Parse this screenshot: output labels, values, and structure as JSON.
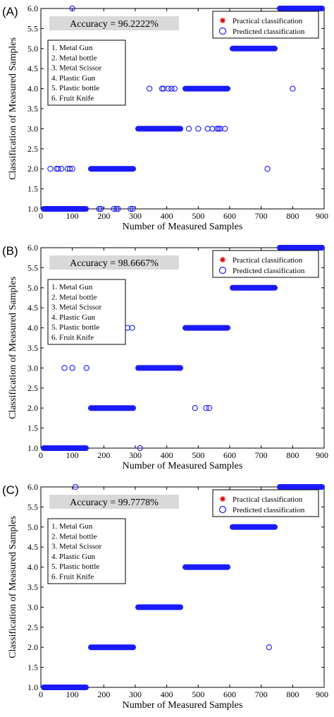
{
  "chart_data": [
    {
      "type": "scatter",
      "panel_label": "(A)",
      "xlabel": "Number of Measured Samples",
      "ylabel": "Classification of Measured Samples",
      "xlim": [
        0,
        900
      ],
      "ylim": [
        1.0,
        6.0
      ],
      "xticks": [
        "0",
        "100",
        "200",
        "300",
        "400",
        "500",
        "600",
        "700",
        "800",
        "900"
      ],
      "yticks": [
        "1.0",
        "1.5",
        "2.0",
        "2.5",
        "3.0",
        "3.5",
        "4.0",
        "4.5",
        "5.0",
        "5.5",
        "6.0"
      ],
      "accuracy_text": "Accuracy = 96.2222%",
      "classes": [
        "1. Metal Gun",
        "2. Metal bottle",
        "3. Metal Scissor",
        "4. Plastic Gun",
        "5. Plastic bottle",
        "6. Fruit Knife"
      ],
      "legend": [
        "Practical classification",
        "Predicted classification"
      ],
      "practical": [
        {
          "class": 1,
          "x_start": 0,
          "x_end": 150
        },
        {
          "class": 2,
          "x_start": 150,
          "x_end": 300
        },
        {
          "class": 3,
          "x_start": 300,
          "x_end": 450
        },
        {
          "class": 4,
          "x_start": 450,
          "x_end": 600
        },
        {
          "class": 5,
          "x_start": 600,
          "x_end": 750
        },
        {
          "class": 6,
          "x_start": 750,
          "x_end": 900
        }
      ],
      "misclassified": [
        {
          "x": 100,
          "y": 6.0
        },
        {
          "x": 30,
          "y": 2.0
        },
        {
          "x": 50,
          "y": 2.0
        },
        {
          "x": 55,
          "y": 2.0
        },
        {
          "x": 65,
          "y": 2.0
        },
        {
          "x": 85,
          "y": 2.0
        },
        {
          "x": 92,
          "y": 2.0
        },
        {
          "x": 100,
          "y": 2.0
        },
        {
          "x": 185,
          "y": 1.0
        },
        {
          "x": 190,
          "y": 1.0
        },
        {
          "x": 232,
          "y": 1.0
        },
        {
          "x": 240,
          "y": 1.0
        },
        {
          "x": 245,
          "y": 1.0
        },
        {
          "x": 285,
          "y": 1.0
        },
        {
          "x": 292,
          "y": 1.0
        },
        {
          "x": 345,
          "y": 4.0
        },
        {
          "x": 385,
          "y": 4.0
        },
        {
          "x": 390,
          "y": 4.0
        },
        {
          "x": 405,
          "y": 4.0
        },
        {
          "x": 415,
          "y": 4.0
        },
        {
          "x": 425,
          "y": 4.0
        },
        {
          "x": 470,
          "y": 3.0
        },
        {
          "x": 500,
          "y": 3.0
        },
        {
          "x": 530,
          "y": 3.0
        },
        {
          "x": 545,
          "y": 3.0
        },
        {
          "x": 560,
          "y": 3.0
        },
        {
          "x": 565,
          "y": 3.0
        },
        {
          "x": 570,
          "y": 3.0
        },
        {
          "x": 585,
          "y": 3.0
        },
        {
          "x": 720,
          "y": 2.0
        },
        {
          "x": 800,
          "y": 4.0
        }
      ]
    },
    {
      "type": "scatter",
      "panel_label": "(B)",
      "xlabel": "Number of Measured Samples",
      "ylabel": "Classification of Measured Samples",
      "xlim": [
        0,
        900
      ],
      "ylim": [
        1.0,
        6.0
      ],
      "xticks": [
        "0",
        "100",
        "200",
        "300",
        "400",
        "500",
        "600",
        "700",
        "800",
        "900"
      ],
      "yticks": [
        "1.0",
        "1.5",
        "2.0",
        "2.5",
        "3.0",
        "3.5",
        "4.0",
        "4.5",
        "5.0",
        "5.5",
        "6.0"
      ],
      "accuracy_text": "Accuracy = 98.6667%",
      "classes": [
        "1. Metal Gun",
        "2. Metal bottle",
        "3. Metal Scissor",
        "4. Plastic Gun",
        "5. Plastic bottle",
        "6. Fruit Knife"
      ],
      "legend": [
        "Practical classification",
        "Predicted classification"
      ],
      "practical": [
        {
          "class": 1,
          "x_start": 0,
          "x_end": 150
        },
        {
          "class": 2,
          "x_start": 150,
          "x_end": 300
        },
        {
          "class": 3,
          "x_start": 300,
          "x_end": 450
        },
        {
          "class": 4,
          "x_start": 450,
          "x_end": 600
        },
        {
          "class": 5,
          "x_start": 600,
          "x_end": 750
        },
        {
          "class": 6,
          "x_start": 750,
          "x_end": 900
        }
      ],
      "misclassified": [
        {
          "x": 75,
          "y": 3.0
        },
        {
          "x": 100,
          "y": 3.0
        },
        {
          "x": 145,
          "y": 3.0
        },
        {
          "x": 250,
          "y": 4.0
        },
        {
          "x": 275,
          "y": 4.0
        },
        {
          "x": 290,
          "y": 4.0
        },
        {
          "x": 315,
          "y": 1.0
        },
        {
          "x": 490,
          "y": 2.0
        },
        {
          "x": 525,
          "y": 2.0
        },
        {
          "x": 535,
          "y": 2.0
        }
      ]
    },
    {
      "type": "scatter",
      "panel_label": "(C)",
      "xlabel": "Number of Measured Samples",
      "ylabel": "Classification of Measured Samples",
      "xlim": [
        0,
        900
      ],
      "ylim": [
        1.0,
        6.0
      ],
      "xticks": [
        "0",
        "100",
        "200",
        "300",
        "400",
        "500",
        "600",
        "700",
        "800",
        "900"
      ],
      "yticks": [
        "1.0",
        "1.5",
        "2.0",
        "2.5",
        "3.0",
        "3.5",
        "4.0",
        "4.5",
        "5.0",
        "5.5",
        "6.0"
      ],
      "accuracy_text": "Accuracy = 99.7778%",
      "classes": [
        "1. Metal Gun",
        "2. Metal bottle",
        "3. Metal Scissor",
        "4. Plastic Gun",
        "5. Plastic bottle",
        "6. Fruit Knife"
      ],
      "legend": [
        "Practical classification",
        "Predicted classification"
      ],
      "practical": [
        {
          "class": 1,
          "x_start": 0,
          "x_end": 150
        },
        {
          "class": 2,
          "x_start": 150,
          "x_end": 300
        },
        {
          "class": 3,
          "x_start": 300,
          "x_end": 450
        },
        {
          "class": 4,
          "x_start": 450,
          "x_end": 600
        },
        {
          "class": 5,
          "x_start": 600,
          "x_end": 750
        },
        {
          "class": 6,
          "x_start": 750,
          "x_end": 900
        }
      ],
      "misclassified": [
        {
          "x": 110,
          "y": 6.0
        },
        {
          "x": 725,
          "y": 2.0
        }
      ]
    }
  ],
  "colors": {
    "predicted": "#1a1aff",
    "practical": "#e00000",
    "accuracy_box": "#d9d9d9"
  }
}
